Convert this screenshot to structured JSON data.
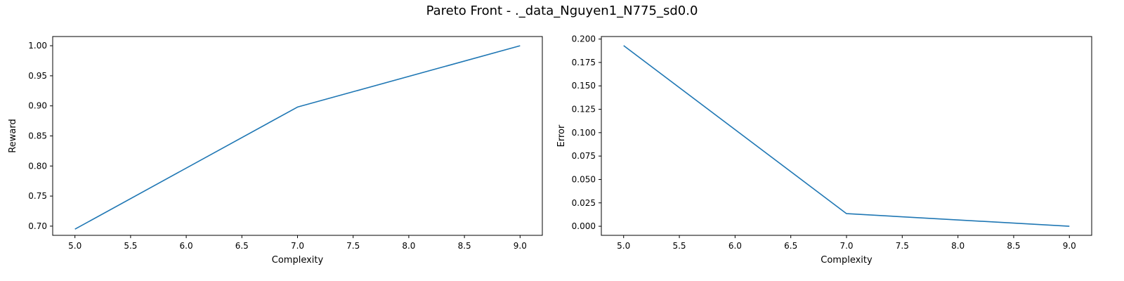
{
  "figure_title": "Pareto Front - ._data_Nguyen1_N775_sd0.0",
  "line_color": "#1f77b4",
  "chart_data": [
    {
      "type": "line",
      "title": "",
      "xlabel": "Complexity",
      "ylabel": "Reward",
      "xlim": [
        4.8,
        9.2
      ],
      "ylim": [
        0.6847,
        1.0153
      ],
      "xticks": [
        "5.0",
        "5.5",
        "6.0",
        "6.5",
        "7.0",
        "7.5",
        "8.0",
        "8.5",
        "9.0"
      ],
      "yticks": [
        "0.70",
        "0.75",
        "0.80",
        "0.85",
        "0.90",
        "0.95",
        "1.00"
      ],
      "series": [
        {
          "x": [
            5,
            7,
            9
          ],
          "y": [
            0.695,
            0.898,
            1.0
          ]
        }
      ]
    },
    {
      "type": "line",
      "title": "",
      "xlabel": "Complexity",
      "ylabel": "Error",
      "xlim": [
        4.8,
        9.2
      ],
      "ylim": [
        -0.0097,
        0.2027
      ],
      "xticks": [
        "5.0",
        "5.5",
        "6.0",
        "6.5",
        "7.0",
        "7.5",
        "8.0",
        "8.5",
        "9.0"
      ],
      "yticks": [
        "0.000",
        "0.025",
        "0.050",
        "0.075",
        "0.100",
        "0.125",
        "0.150",
        "0.175",
        "0.200"
      ],
      "series": [
        {
          "x": [
            5,
            7,
            9
          ],
          "y": [
            0.193,
            0.0135,
            0.0
          ]
        }
      ]
    }
  ]
}
